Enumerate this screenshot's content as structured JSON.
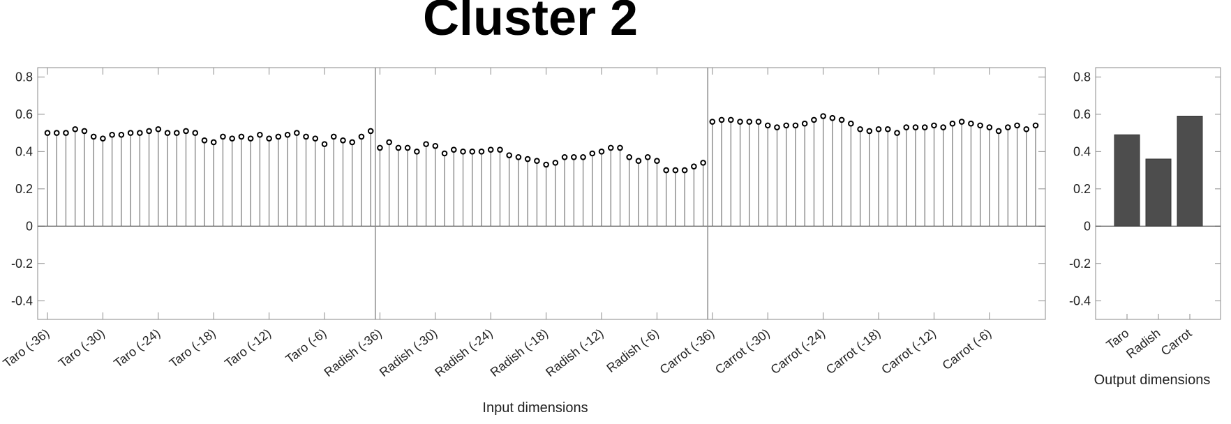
{
  "title": "Cluster 2",
  "chart_data": [
    {
      "type": "stem",
      "title": "Cluster 2",
      "xlabel": "Input dimensions",
      "ylabel": "",
      "ylim": [
        -0.5,
        0.85
      ],
      "yticks": [
        -0.4,
        -0.2,
        0,
        0.2,
        0.4,
        0.6,
        0.8
      ],
      "ytick_labels": [
        "-0.4",
        "-0.2",
        "0",
        "0.2",
        "0.4",
        "0.6",
        "0.8"
      ],
      "grid": false,
      "marker": "open-circle",
      "group_separators_after_index": [
        35,
        71
      ],
      "tick_labels": [
        {
          "index": 0,
          "label": "Taro (-36)"
        },
        {
          "index": 6,
          "label": "Taro (-30)"
        },
        {
          "index": 12,
          "label": "Taro (-24)"
        },
        {
          "index": 18,
          "label": "Taro (-18)"
        },
        {
          "index": 24,
          "label": "Taro (-12)"
        },
        {
          "index": 30,
          "label": "Taro (-6)"
        },
        {
          "index": 36,
          "label": "Radish (-36)"
        },
        {
          "index": 42,
          "label": "Radish (-30)"
        },
        {
          "index": 48,
          "label": "Radish (-24)"
        },
        {
          "index": 54,
          "label": "Radish (-18)"
        },
        {
          "index": 60,
          "label": "Radish (-12)"
        },
        {
          "index": 66,
          "label": "Radish (-6)"
        },
        {
          "index": 72,
          "label": "Carrot (-36)"
        },
        {
          "index": 78,
          "label": "Carrot (-30)"
        },
        {
          "index": 84,
          "label": "Carrot (-24)"
        },
        {
          "index": 90,
          "label": "Carrot (-18)"
        },
        {
          "index": 96,
          "label": "Carrot (-12)"
        },
        {
          "index": 102,
          "label": "Carrot (-6)"
        }
      ],
      "values": [
        0.5,
        0.5,
        0.5,
        0.52,
        0.51,
        0.48,
        0.47,
        0.49,
        0.49,
        0.5,
        0.5,
        0.51,
        0.52,
        0.5,
        0.5,
        0.51,
        0.5,
        0.46,
        0.45,
        0.48,
        0.47,
        0.48,
        0.47,
        0.49,
        0.47,
        0.48,
        0.49,
        0.5,
        0.48,
        0.47,
        0.44,
        0.48,
        0.46,
        0.45,
        0.48,
        0.51,
        0.42,
        0.45,
        0.42,
        0.42,
        0.4,
        0.44,
        0.43,
        0.39,
        0.41,
        0.4,
        0.4,
        0.4,
        0.41,
        0.41,
        0.38,
        0.37,
        0.36,
        0.35,
        0.33,
        0.34,
        0.37,
        0.37,
        0.37,
        0.39,
        0.4,
        0.42,
        0.42,
        0.37,
        0.35,
        0.37,
        0.35,
        0.3,
        0.3,
        0.3,
        0.32,
        0.34,
        0.56,
        0.57,
        0.57,
        0.56,
        0.56,
        0.56,
        0.54,
        0.53,
        0.54,
        0.54,
        0.55,
        0.57,
        0.59,
        0.58,
        0.57,
        0.55,
        0.52,
        0.51,
        0.52,
        0.52,
        0.5,
        0.53,
        0.53,
        0.53,
        0.54,
        0.53,
        0.55,
        0.56,
        0.55,
        0.54,
        0.53,
        0.51,
        0.53,
        0.54,
        0.52,
        0.54
      ]
    },
    {
      "type": "bar",
      "xlabel": "Output dimensions",
      "ylabel": "",
      "ylim": [
        -0.5,
        0.85
      ],
      "yticks": [
        -0.4,
        -0.2,
        0,
        0.2,
        0.4,
        0.6,
        0.8
      ],
      "ytick_labels": [
        "-0.4",
        "-0.2",
        "0",
        "0.2",
        "0.4",
        "0.6",
        "0.8"
      ],
      "grid": false,
      "categories": [
        "Taro",
        "Radish",
        "Carrot"
      ],
      "values": [
        0.49,
        0.36,
        0.59
      ],
      "bar_color": "#4d4d4d"
    }
  ]
}
